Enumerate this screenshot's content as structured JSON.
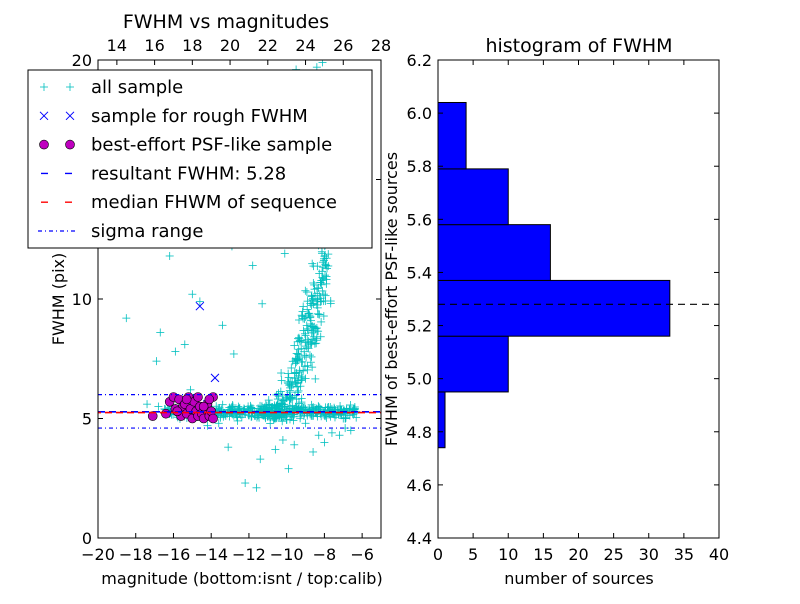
{
  "chart_data": [
    {
      "type": "scatter",
      "title": "FWHM vs magnitudes",
      "xlabel": "magnitude (bottom:isnt / top:calib)",
      "ylabel": "FWHM (pix)",
      "xlim": [
        -20,
        -5
      ],
      "ylim": [
        0,
        20
      ],
      "x_ticks": [
        -20,
        -18,
        -16,
        -14,
        -12,
        -10,
        -8,
        -6
      ],
      "x_tick_labels": [
        "−20",
        "−18",
        "−16",
        "−14",
        "−12",
        "−10",
        "−8",
        "−6"
      ],
      "y_ticks": [
        0,
        5,
        10,
        15,
        20
      ],
      "y_tick_labels": [
        "0",
        "5",
        "10",
        "",
        "20"
      ],
      "top_xlim": [
        13,
        28
      ],
      "top_ticks": [
        14,
        16,
        18,
        20,
        22,
        24,
        26,
        28
      ],
      "top_tick_labels": [
        "14",
        "16",
        "18",
        "20",
        "22",
        "24",
        "26",
        "28"
      ],
      "legend_position": "top-left",
      "legend": [
        {
          "label": "all sample",
          "marker": "plus",
          "color": "#00bfbf"
        },
        {
          "label": "sample for rough FWHM",
          "marker": "x",
          "color": "#0000ff"
        },
        {
          "label": "best-effort PSF-like sample",
          "marker": "circle",
          "color": "#bf00bf"
        },
        {
          "label": "resultant FWHM: 5.28",
          "marker": "dash",
          "color": "#0000ff"
        },
        {
          "label": "median FHWM of sequence",
          "marker": "dash",
          "color": "#ff0000"
        },
        {
          "label": "sigma range",
          "marker": "dashdot",
          "color": "#0000ff"
        }
      ],
      "lines": {
        "resultant_fwhm": 5.28,
        "median_fwhm": 5.28,
        "sigma_upper": 6.0,
        "sigma_lower": 4.6
      },
      "series": {
        "rough_sample": [
          [
            -14.6,
            9.7
          ],
          [
            -13.8,
            6.7
          ],
          [
            -14.9,
            5.9
          ],
          [
            -14.2,
            5.6
          ],
          [
            -15.1,
            5.4
          ]
        ],
        "psf_sample": [
          [
            -17.1,
            5.1
          ],
          [
            -16.4,
            5.2
          ],
          [
            -16.2,
            5.7
          ],
          [
            -16.0,
            5.9
          ],
          [
            -15.9,
            5.4
          ],
          [
            -15.7,
            5.8
          ],
          [
            -15.6,
            5.1
          ],
          [
            -15.5,
            5.5
          ],
          [
            -15.4,
            5.6
          ],
          [
            -15.3,
            5.2
          ],
          [
            -15.2,
            5.9
          ],
          [
            -15.1,
            5.4
          ],
          [
            -15.0,
            5.0
          ],
          [
            -14.9,
            5.7
          ],
          [
            -14.8,
            5.3
          ],
          [
            -14.7,
            5.1
          ],
          [
            -14.6,
            5.5
          ],
          [
            -14.5,
            5.2
          ],
          [
            -14.4,
            5.0
          ],
          [
            -14.3,
            5.4
          ],
          [
            -14.2,
            5.6
          ],
          [
            -14.1,
            5.1
          ],
          [
            -14.0,
            5.3
          ],
          [
            -13.9,
            5.9
          ],
          [
            -13.9,
            5.0
          ],
          [
            -15.8,
            5.3
          ],
          [
            -15.3,
            5.8
          ],
          [
            -14.7,
            5.9
          ],
          [
            -14.4,
            5.5
          ],
          [
            -14.1,
            5.8
          ]
        ],
        "all_sample_clusters": {
          "branch": [
            [
              -11.2,
              5.2,
              0.35
            ],
            [
              -10.8,
              5.3,
              0.7
            ],
            [
              -10.4,
              5.5,
              1.2
            ],
            [
              -10.0,
              5.8,
              1.8
            ],
            [
              -9.7,
              6.4,
              2.4
            ],
            [
              -9.4,
              7.2,
              2.8
            ],
            [
              -9.1,
              8.0,
              3.2
            ],
            [
              -8.8,
              8.8,
              3.5
            ],
            [
              -8.5,
              9.6,
              3.6
            ],
            [
              -8.2,
              10.4,
              3.4
            ],
            [
              -7.9,
              11.0,
              3.0
            ]
          ],
          "seed": 7
        },
        "all_sample_points": [
          [
            -18.5,
            9.2
          ],
          [
            -16.2,
            11.8
          ],
          [
            -15.6,
            12.3
          ],
          [
            -16.7,
            8.6
          ],
          [
            -16.9,
            7.4
          ],
          [
            -15.9,
            7.8
          ],
          [
            -15.4,
            8.1
          ],
          [
            -14.6,
            9.9
          ],
          [
            -15.0,
            10.2
          ],
          [
            -13.4,
            8.9
          ],
          [
            -12.8,
            7.7
          ],
          [
            -11.3,
            9.8
          ],
          [
            -10.6,
            13.8
          ],
          [
            -10.3,
            14.1
          ],
          [
            -9.6,
            14.6
          ],
          [
            -9.2,
            13.1
          ],
          [
            -8.9,
            15.8
          ],
          [
            -8.7,
            16.5
          ],
          [
            -8.4,
            19.7
          ],
          [
            -8.1,
            19.9
          ],
          [
            -9.5,
            19.6
          ],
          [
            -10.9,
            12.8
          ],
          [
            -11.8,
            11.4
          ],
          [
            -12.1,
            13.6
          ],
          [
            -12.9,
            12.2
          ],
          [
            -10.1,
            11.9
          ],
          [
            -9.9,
            2.9
          ],
          [
            -11.6,
            2.1
          ],
          [
            -12.2,
            2.3
          ],
          [
            -13.1,
            3.8
          ],
          [
            -11.4,
            3.3
          ],
          [
            -10.6,
            3.7
          ],
          [
            -10.2,
            4.1
          ],
          [
            -9.6,
            3.9
          ],
          [
            -8.6,
            3.6
          ],
          [
            -8.0,
            4.0
          ],
          [
            -7.6,
            4.4
          ],
          [
            -7.2,
            4.3
          ],
          [
            -6.9,
            4.6
          ],
          [
            -6.6,
            4.5
          ],
          [
            -9.0,
            4.8
          ],
          [
            -8.3,
            4.3
          ],
          [
            -7.0,
            5.0
          ],
          [
            -6.4,
            5.4
          ],
          [
            -16.8,
            5.5
          ],
          [
            -17.4,
            5.6
          ],
          [
            -15.1,
            6.2
          ],
          [
            -14.2,
            4.7
          ],
          [
            -12.6,
            4.9
          ],
          [
            -13.6,
            4.8
          ]
        ]
      }
    },
    {
      "type": "bar",
      "orientation": "horizontal",
      "title": "histogram of FWHM",
      "xlabel": "number of sources",
      "ylabel": "FWHM of best-effort PSF-like sources",
      "xlim": [
        0,
        40
      ],
      "ylim": [
        4.4,
        6.2
      ],
      "x_ticks": [
        0,
        5,
        10,
        15,
        20,
        25,
        30,
        35,
        40
      ],
      "y_ticks": [
        4.4,
        4.6,
        4.8,
        5.0,
        5.2,
        5.4,
        5.6,
        5.8,
        6.0,
        6.2
      ],
      "y_tick_labels": [
        "4.4",
        "4.6",
        "4.8",
        "5.0",
        "5.2",
        "5.4",
        "5.6",
        "5.8",
        "6.0",
        "6.2"
      ],
      "bins": [
        {
          "low": 4.74,
          "high": 4.95,
          "count": 1
        },
        {
          "low": 4.95,
          "high": 5.16,
          "count": 10
        },
        {
          "low": 5.16,
          "high": 5.37,
          "count": 33
        },
        {
          "low": 5.37,
          "high": 5.58,
          "count": 16
        },
        {
          "low": 5.58,
          "high": 5.79,
          "count": 10
        },
        {
          "low": 5.79,
          "high": 6.04,
          "count": 4
        }
      ],
      "bar_color": "#0000ff",
      "median_line": 5.28
    }
  ]
}
